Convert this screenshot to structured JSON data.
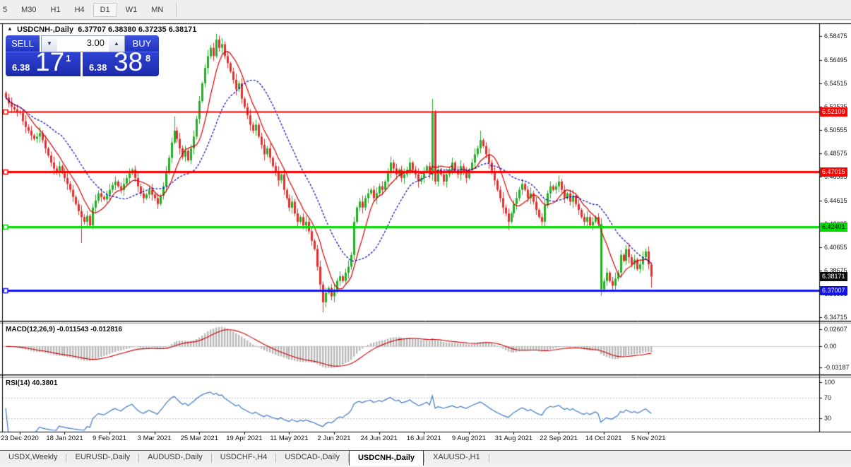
{
  "toolbar": {
    "timeframes": [
      {
        "label": "5"
      },
      {
        "label": "M30"
      },
      {
        "label": "H1"
      },
      {
        "label": "H4"
      },
      {
        "label": "D1"
      },
      {
        "label": "W1"
      },
      {
        "label": "MN"
      }
    ],
    "active_timeframe": "D1"
  },
  "chart": {
    "collapse_icon": "▲",
    "title": "USDCNH-,Daily",
    "ohlc_text": "6.37707 6.38380 6.37235 6.38171"
  },
  "trade_panel": {
    "sell_label": "SELL",
    "buy_label": "BUY",
    "volume": "3.00",
    "down_icon": "▼",
    "up_icon": "▲",
    "sell_price_small": "6.38",
    "sell_price_big": "17",
    "sell_price_sup": "1",
    "buy_price_small": "6.38",
    "buy_price_big": "38",
    "buy_price_sup": "8"
  },
  "indicators": {
    "macd_label": "MACD(12,26,9) -0.011543 -0.012816",
    "rsi_label": "RSI(14) 40.3801"
  },
  "tabs": [
    {
      "label": "USDX,Weekly",
      "active": false
    },
    {
      "label": "EURUSD-,Daily",
      "active": false
    },
    {
      "label": "AUDUSD-,Daily",
      "active": false
    },
    {
      "label": "USDCHF-,H4",
      "active": false
    },
    {
      "label": "USDCAD-,Daily",
      "active": false
    },
    {
      "label": "USDCNH-,Daily",
      "active": true
    },
    {
      "label": "XAUUSD-,H1",
      "active": false
    }
  ],
  "colors": {
    "candle_up": "#25ad25",
    "candle_down": "#e42e2e",
    "ma_fast": "#d40000",
    "ma_slow": "#0000bb",
    "level_red": "#fe0000",
    "level_green": "#00dd00",
    "level_blue": "#1212ee",
    "macd_hist": "#b9b9b9",
    "macd_signal": "#cc0000",
    "rsi_line": "#3e79c8",
    "chip_current_bg": "#0d0d0d"
  },
  "chart_data": {
    "type": "candlestick",
    "symbol": "USDCNH-",
    "timeframe": "Daily",
    "ohlc_display": {
      "open": 6.37707,
      "high": 6.3838,
      "low": 6.37235,
      "close": 6.38171
    },
    "ylim": [
      6.3443,
      6.5951
    ],
    "price_ticks": [
      6.58475,
      6.56495,
      6.54515,
      6.52535,
      6.50555,
      6.48575,
      6.46595,
      6.44615,
      6.42635,
      6.40655,
      6.38675,
      6.36695,
      6.34715
    ],
    "date_labels": [
      "23 Dec 2020",
      "18 Jan 2021",
      "9 Feb 2021",
      "3 Mar 2021",
      "25 Mar 2021",
      "19 Apr 2021",
      "11 May 2021",
      "2 Jun 2021",
      "24 Jun 2021",
      "16 Jul 2021",
      "9 Aug 2021",
      "31 Aug 2021",
      "22 Sep 2021",
      "14 Oct 2021",
      "5 Nov 2021"
    ],
    "levels": [
      {
        "price": 6.52109,
        "label": "6.52109",
        "color": "#fe0000",
        "text_color": "#ffffff",
        "width": 2
      },
      {
        "price": 6.47015,
        "label": "6.47015",
        "color": "#fe0000",
        "text_color": "#ffffff",
        "width": 3
      },
      {
        "price": 6.42401,
        "label": "6.42401",
        "color": "#00dd00",
        "text_color": "#000000",
        "width": 3
      },
      {
        "price": 6.37007,
        "label": "6.37007",
        "color": "#1212ee",
        "text_color": "#ffffff",
        "width": 3
      }
    ],
    "current_price": {
      "value": 6.38171,
      "label": "6.38171"
    },
    "moving_averages": [
      {
        "name": "fast",
        "period": 8,
        "color": "#d40000",
        "style": "solid"
      },
      {
        "name": "slow",
        "period": 21,
        "color": "#0000bb",
        "style": "dashed"
      }
    ],
    "closes": [
      6.533,
      6.528,
      6.525,
      6.523,
      6.521,
      6.52,
      6.513,
      6.508,
      6.505,
      6.501,
      6.498,
      6.5,
      6.503,
      6.497,
      6.49,
      6.484,
      6.478,
      6.473,
      6.47,
      6.475,
      6.47,
      6.465,
      6.46,
      6.455,
      6.449,
      6.443,
      6.437,
      6.432,
      6.428,
      6.433,
      6.425,
      6.44,
      6.446,
      6.452,
      6.449,
      6.447,
      6.451,
      6.455,
      6.459,
      6.462,
      6.458,
      6.455,
      6.46,
      6.465,
      6.469,
      6.472,
      6.465,
      6.458,
      6.452,
      6.448,
      6.451,
      6.455,
      6.451,
      6.448,
      6.443,
      6.45,
      6.458,
      6.47,
      6.482,
      6.495,
      6.505,
      6.498,
      6.49,
      6.483,
      6.488,
      6.48,
      6.49,
      6.5,
      6.515,
      6.53,
      6.545,
      6.558,
      6.568,
      6.575,
      6.568,
      6.582,
      6.575,
      6.578,
      6.568,
      6.562,
      6.555,
      6.548,
      6.54,
      6.545,
      6.532,
      6.525,
      6.518,
      6.51,
      6.505,
      6.51,
      6.5,
      6.493,
      6.485,
      6.49,
      6.482,
      6.475,
      6.47,
      6.463,
      6.468,
      6.455,
      6.448,
      6.44,
      6.445,
      6.435,
      6.428,
      6.432,
      6.425,
      6.428,
      6.42,
      6.412,
      6.405,
      6.39,
      6.375,
      6.36,
      6.368,
      6.372,
      6.365,
      6.37,
      6.378,
      6.382,
      6.378,
      6.385,
      6.39,
      6.4,
      6.428,
      6.44,
      6.445,
      6.44,
      6.448,
      6.452,
      6.455,
      6.448,
      6.452,
      6.458,
      6.455,
      6.462,
      6.47,
      6.478,
      6.473,
      6.468,
      6.472,
      6.465,
      6.468,
      6.472,
      6.478,
      6.472,
      6.468,
      6.462,
      6.465,
      6.47,
      6.475,
      6.468,
      6.52,
      6.462,
      6.472,
      6.468,
      6.462,
      6.468,
      6.472,
      6.478,
      6.472,
      6.468,
      6.475,
      6.47,
      6.465,
      6.472,
      6.478,
      6.485,
      6.49,
      6.497,
      6.492,
      6.485,
      6.478,
      6.47,
      6.463,
      6.455,
      6.448,
      6.44,
      6.435,
      6.428,
      6.435,
      6.443,
      6.448,
      6.455,
      6.46,
      6.455,
      6.448,
      6.452,
      6.445,
      6.438,
      6.432,
      6.428,
      6.442,
      6.452,
      6.458,
      6.455,
      6.458,
      6.462,
      6.455,
      6.448,
      6.452,
      6.445,
      6.45,
      6.443,
      6.438,
      6.432,
      6.428,
      6.432,
      6.425,
      6.428,
      6.432,
      6.426,
      6.371,
      6.378,
      6.385,
      6.378,
      6.374,
      6.38,
      6.385,
      6.4,
      6.395,
      6.405,
      6.398,
      6.392,
      6.396,
      6.388,
      6.392,
      6.398,
      6.403,
      6.392,
      6.3817
    ],
    "wick_overrides": {
      "27": {
        "l": 6.41
      },
      "60": {
        "h": 6.517
      },
      "75": {
        "h": 6.587
      },
      "113": {
        "l": 6.3515
      },
      "152": {
        "h": 6.532
      },
      "169": {
        "h": 6.505
      },
      "179": {
        "l": 6.421
      },
      "212": {
        "l": 6.3655,
        "u": true
      },
      "230": {
        "l": 6.37235
      }
    },
    "macd": {
      "params": [
        12,
        26,
        9
      ],
      "main_value": -0.011543,
      "signal_value": -0.012816,
      "ticks": [
        {
          "label": "0.02607",
          "value": 0.02607
        },
        {
          "label": "0.00",
          "value": 0.0
        },
        {
          "label": "-0.03187",
          "value": -0.03187
        }
      ]
    },
    "rsi": {
      "period": 14,
      "value": 40.3801,
      "ticks": [
        {
          "label": "100",
          "value": 100
        },
        {
          "label": "70",
          "value": 70
        },
        {
          "label": "30",
          "value": 30
        }
      ],
      "levels": [
        70,
        30
      ]
    }
  }
}
